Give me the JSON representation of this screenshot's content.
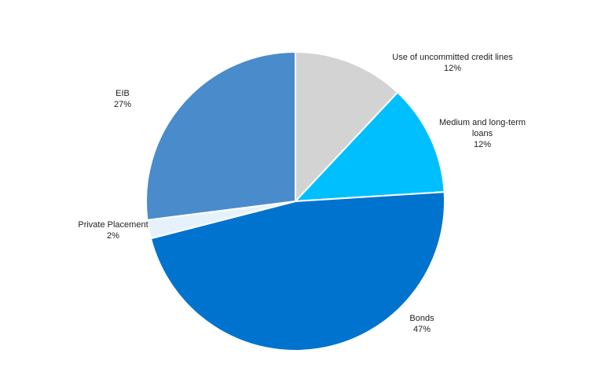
{
  "chart_data": {
    "type": "pie",
    "title": "",
    "start_angle_deg": 0,
    "direction": "clockwise",
    "slices": [
      {
        "label_lines": [
          "Use of uncommitted credit lines"
        ],
        "pct_label": "12%",
        "value": 12,
        "color": "#d3d3d3"
      },
      {
        "label_lines": [
          "Medium and long-term",
          "loans"
        ],
        "pct_label": "12%",
        "value": 12,
        "color": "#00bfff"
      },
      {
        "label_lines": [
          "Bonds"
        ],
        "pct_label": "47%",
        "value": 47,
        "color": "#0073cf"
      },
      {
        "label_lines": [
          "Private Placement"
        ],
        "pct_label": "2%",
        "value": 2,
        "color": "#e6f2fb"
      },
      {
        "label_lines": [
          "EIB"
        ],
        "pct_label": "27%",
        "value": 27,
        "color": "#4a8bcb"
      }
    ]
  }
}
